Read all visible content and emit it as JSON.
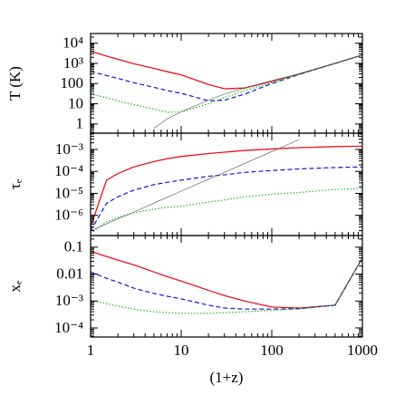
{
  "chart_data": [
    {
      "type": "line",
      "ylabel": "T (K)",
      "xscale": "log",
      "yscale": "log",
      "x": [
        1,
        1.5,
        2,
        3,
        5,
        7,
        10,
        20,
        30,
        50,
        100,
        200,
        500,
        1000
      ],
      "xlim": [
        1,
        1000
      ],
      "ylim": [
        0.35,
        30000
      ],
      "yticks": [
        1,
        10,
        100,
        {
          "value": 1000,
          "label": "10³"
        },
        {
          "value": 10000,
          "label": "10⁴"
        }
      ],
      "series": [
        {
          "color": "#e8141c",
          "dash": "solid",
          "values": [
            4000,
            2300,
            1600,
            950,
            560,
            390,
            270,
            90,
            55,
            60,
            130,
            300,
            1000,
            2600
          ]
        },
        {
          "color": "#1414d8",
          "dash": "dashed",
          "values": [
            400,
            250,
            180,
            110,
            65,
            45,
            33,
            14,
            15,
            30,
            100,
            280,
            1000,
            2600
          ]
        },
        {
          "color": "#18c018",
          "dash": "dotted",
          "values": [
            30,
            20,
            14,
            9,
            5.5,
            3.8,
            4,
            10,
            20,
            45,
            110,
            280,
            1000,
            2600
          ]
        },
        {
          "color": "#555555",
          "dash": "thin",
          "values": [
            null,
            null,
            null,
            null,
            0.6,
            1.8,
            4,
            15,
            30,
            60,
            140,
            300,
            1000,
            2600
          ]
        }
      ]
    },
    {
      "type": "line",
      "ylabel": "τₑ",
      "xscale": "log",
      "yscale": "log",
      "x": [
        1,
        1.5,
        2,
        3,
        5,
        7,
        10,
        20,
        30,
        50,
        100,
        200,
        500,
        1000
      ],
      "xlim": [
        1,
        1000
      ],
      "ylim": [
        1.2e-07,
        0.0055
      ],
      "yticks": [
        {
          "value": 1e-06,
          "label": "10⁻⁶"
        },
        {
          "value": 1e-05,
          "label": "10⁻⁵"
        },
        {
          "value": 0.0001,
          "label": "10⁻⁴"
        },
        {
          "value": 0.001,
          "label": "10⁻³"
        }
      ],
      "series": [
        {
          "color": "#e8141c",
          "dash": "solid",
          "values": [
            3e-07,
            4e-05,
            8e-05,
            0.00016,
            0.00028,
            0.00038,
            0.00048,
            0.00065,
            0.00075,
            0.0009,
            0.00105,
            0.0012,
            0.00135,
            0.0014
          ]
        },
        {
          "color": "#1414d8",
          "dash": "dashed",
          "values": [
            2e-07,
            3.5e-06,
            7e-06,
            1.4e-05,
            2.5e-05,
            3.2e-05,
            4e-05,
            6e-05,
            7e-05,
            9e-05,
            0.00011,
            0.00013,
            0.00015,
            0.00016
          ]
        },
        {
          "color": "#18c018",
          "dash": "dotted",
          "values": [
            1.5e-07,
            5e-07,
            8e-07,
            1.3e-06,
            1.9e-06,
            2.3e-06,
            2.6e-06,
            4e-06,
            5e-06,
            7e-06,
            9e-06,
            1.1e-05,
            1.5e-05,
            1.7e-05
          ]
        },
        {
          "color": "#555555",
          "dash": "thin",
          "values": [
            2e-07,
            4.1e-07,
            7e-07,
            1.4e-06,
            3.6e-06,
            6.6e-06,
            1.26e-05,
            4.4e-05,
            9e-05,
            0.00023,
            0.0008,
            0.0028,
            null,
            null
          ]
        }
      ]
    },
    {
      "type": "line",
      "ylabel": "xₑ",
      "xlabel": "(1+z)",
      "xscale": "log",
      "yscale": "log",
      "x": [
        1,
        1.5,
        2,
        3,
        5,
        7,
        10,
        20,
        30,
        50,
        100,
        200,
        500,
        1000
      ],
      "xlim": [
        1,
        1000
      ],
      "ylim": [
        4.6e-05,
        0.27
      ],
      "xticks": [
        1,
        10,
        100,
        1000
      ],
      "yticks": [
        {
          "value": 0.0001,
          "label": "10⁻⁴"
        },
        {
          "value": 0.001,
          "label": "10⁻³"
        },
        0.01,
        0.1
      ],
      "series": [
        {
          "color": "#e8141c",
          "dash": "solid",
          "values": [
            0.07,
            0.045,
            0.033,
            0.022,
            0.012,
            0.008,
            0.0055,
            0.0025,
            0.0016,
            0.001,
            0.0006,
            0.00055,
            0.0007,
            0.04
          ]
        },
        {
          "color": "#1414d8",
          "dash": "dashed",
          "values": [
            0.012,
            0.007,
            0.005,
            0.003,
            0.0019,
            0.0015,
            0.0012,
            0.0007,
            0.00055,
            0.0005,
            0.0005,
            0.00052,
            0.0007,
            0.04
          ]
        },
        {
          "color": "#18c018",
          "dash": "dotted",
          "values": [
            0.0011,
            0.0008,
            0.00065,
            0.0005,
            0.0004,
            0.00037,
            0.00035,
            0.00035,
            0.00037,
            0.0004,
            0.00045,
            0.0005,
            0.0007,
            0.04
          ]
        }
      ]
    }
  ]
}
